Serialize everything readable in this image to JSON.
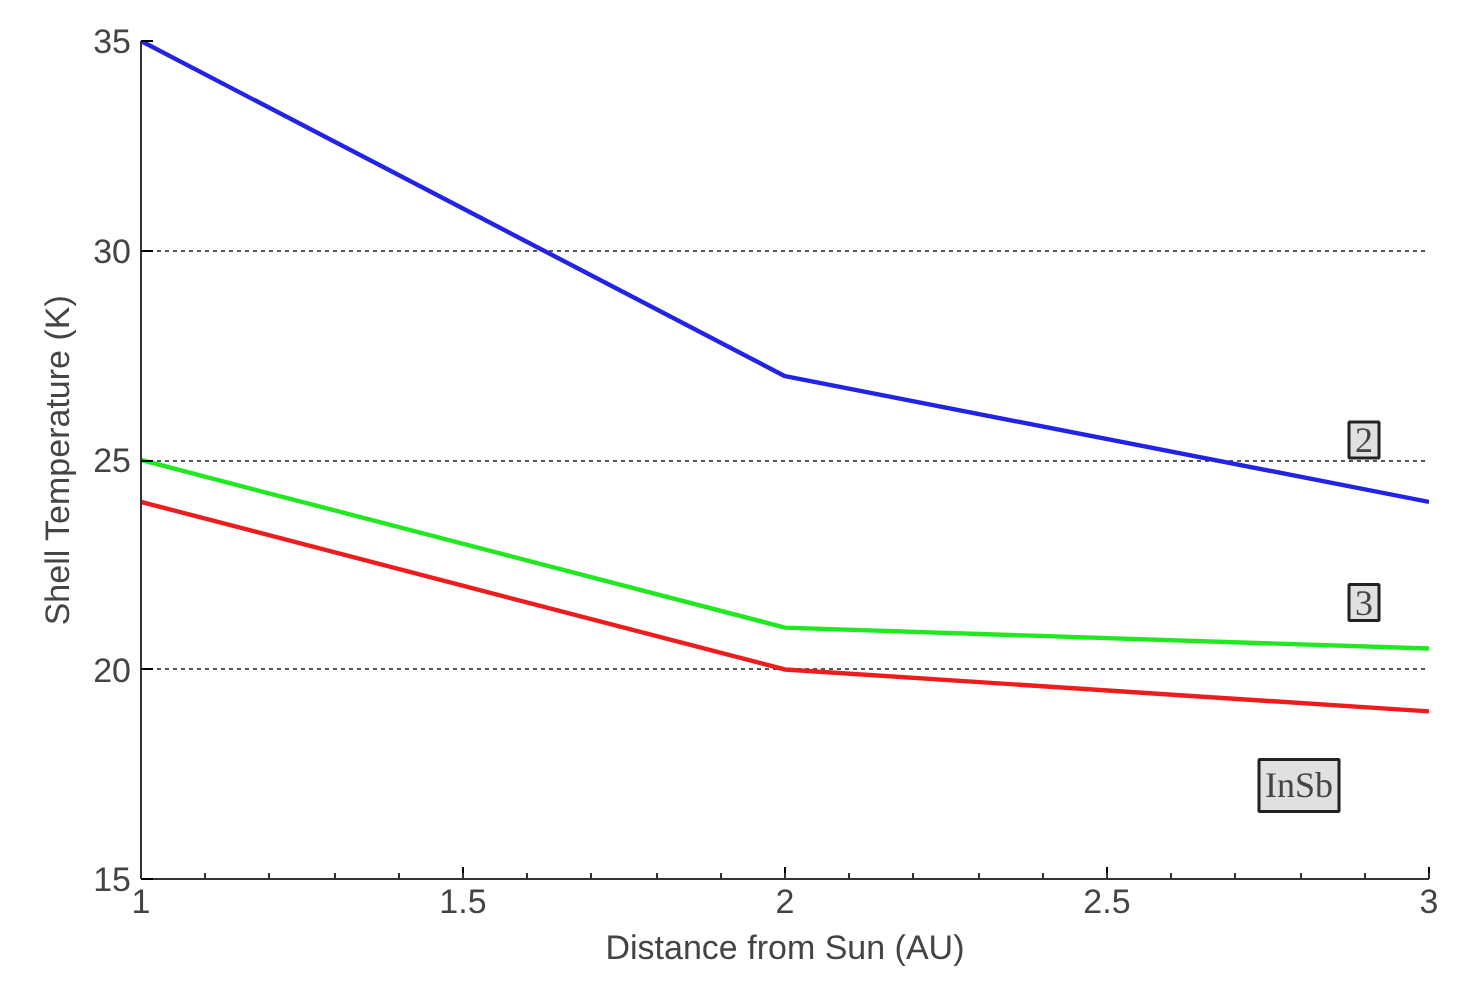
{
  "chart_data": {
    "type": "line",
    "xlabel": "Distance from Sun (AU)",
    "ylabel": "Shell Temperature (K)",
    "x": [
      1,
      2,
      3
    ],
    "series": [
      {
        "name": "2",
        "color": "#2323e6",
        "values": [
          35,
          27,
          24
        ]
      },
      {
        "name": "3",
        "color": "#22e822",
        "values": [
          25,
          21,
          20.5
        ]
      },
      {
        "name": "InSb",
        "color": "#ee1c1c",
        "values": [
          24,
          20,
          19
        ]
      }
    ],
    "xlim": [
      1,
      3
    ],
    "ylim": [
      15,
      35
    ],
    "xticks": [
      1,
      1.5,
      2,
      2.5,
      3
    ],
    "yticks": [
      15,
      20,
      25,
      30,
      35
    ],
    "grid": "y",
    "line_style": "solid",
    "marker": "none"
  }
}
